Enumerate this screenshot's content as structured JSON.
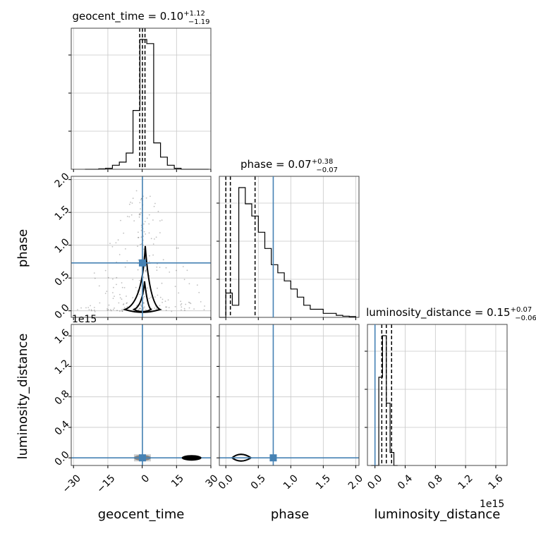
{
  "chart_data": {
    "type": "corner",
    "parameters": [
      "geocent_time",
      "phase",
      "luminosity_distance"
    ],
    "truths": [
      0.1,
      0.73,
      0.0
    ],
    "titles": [
      {
        "param": "geocent_time",
        "prefix": "geocent_time = 0.10",
        "plus": "+1.12",
        "minus": "−1.19"
      },
      {
        "param": "phase",
        "prefix": "phase = 0.07",
        "plus": "+0.38",
        "minus": "−0.07"
      },
      {
        "param": "luminosity_distance",
        "prefix": "luminosity_distance = 0.15",
        "plus": "+0.07",
        "minus": "−0.06"
      }
    ],
    "quantile_lines": {
      "geocent_time": [
        -1.09,
        0.1,
        1.22
      ],
      "phase": [
        0.0,
        0.07,
        0.45
      ],
      "luminosity_distance": [
        0.09,
        0.15,
        0.22
      ]
    },
    "axes": {
      "geocent_time": {
        "range": [
          -31,
          30
        ],
        "ticks": [
          -30,
          -15,
          0,
          15,
          30
        ],
        "tick_labels": [
          "−30",
          "−15",
          "0",
          "15",
          "30"
        ]
      },
      "phase": {
        "range": [
          -0.1,
          2.05
        ],
        "ticks": [
          0.0,
          0.5,
          1.0,
          1.5,
          2.0
        ],
        "tick_labels": [
          "0.0",
          "0.5",
          "1.0",
          "1.5",
          "2.0"
        ]
      },
      "luminosity_distance": {
        "range": [
          -0.1,
          1.75
        ],
        "ticks": [
          0.0,
          0.4,
          0.8,
          1.2,
          1.6
        ],
        "tick_labels": [
          "0.0",
          "0.4",
          "0.8",
          "1.2",
          "1.6"
        ],
        "offset_text": "1e15"
      }
    },
    "histograms": {
      "geocent_time": {
        "edges": [
          -25,
          -22,
          -19,
          -16,
          -13,
          -10,
          -7,
          -4,
          -1,
          2,
          5,
          8,
          11,
          14,
          17,
          20,
          23,
          26,
          29
        ],
        "values": [
          0,
          0,
          0.2,
          0.5,
          2,
          3.5,
          8,
          29,
          64,
          62,
          13,
          6,
          2,
          0.5,
          0,
          0,
          0,
          0
        ]
      },
      "phase": {
        "edges": [
          -0.1,
          -0.0,
          0.1,
          0.2,
          0.3,
          0.4,
          0.5,
          0.6,
          0.7,
          0.8,
          0.9,
          1.0,
          1.1,
          1.2,
          1.3,
          1.4,
          1.5,
          1.6,
          1.7,
          1.8,
          1.9,
          2.0
        ],
        "values": [
          0,
          6,
          3,
          32,
          28,
          25,
          21,
          17,
          13,
          11,
          9,
          7,
          5,
          3,
          2,
          2,
          1,
          1,
          0.5,
          0.3,
          0.2
        ]
      },
      "luminosity_distance": {
        "edges": [
          -0.05,
          0.0,
          0.05,
          0.1,
          0.15,
          0.2,
          0.25,
          0.3
        ],
        "values": [
          0,
          0,
          68,
          100,
          48,
          10,
          0
        ]
      }
    },
    "grid": true
  }
}
